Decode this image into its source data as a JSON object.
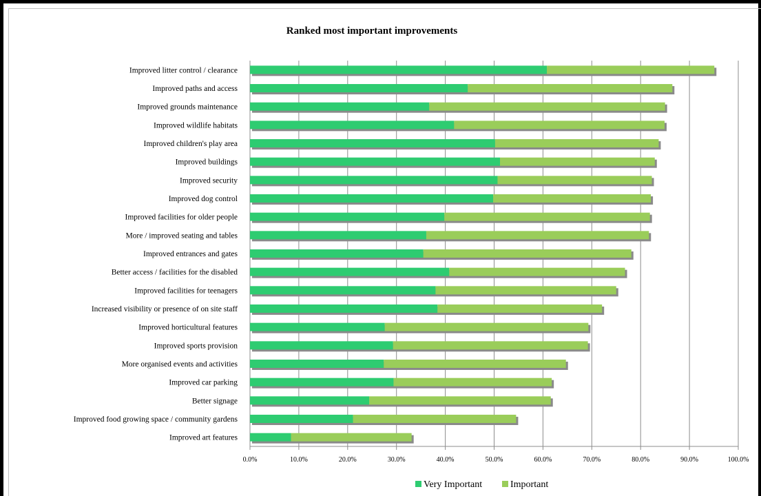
{
  "chart_data": {
    "type": "bar",
    "orientation": "horizontal",
    "stacked": true,
    "title": "Ranked most important improvements",
    "xlabel": "",
    "ylabel": "",
    "xlim": [
      0,
      100
    ],
    "x_ticks": [
      "0.0%",
      "10.0%",
      "20.0%",
      "30.0%",
      "40.0%",
      "50.0%",
      "60.0%",
      "70.0%",
      "80.0%",
      "90.0%",
      "100.0%"
    ],
    "grid": "vertical",
    "legend_position": "bottom",
    "categories": [
      "Improved litter control / clearance",
      "Improved paths and access",
      "Improved grounds maintenance",
      "Improved wildlife habitats",
      "Improved children's play area",
      "Improved buildings",
      "Improved security",
      "Improved dog control",
      "Improved facilities for older people",
      "More / improved seating and tables",
      "Improved entrances and gates",
      "Better access / facilities for the disabled",
      "Improved facilities for teenagers",
      "Increased visibility or presence of on site staff",
      "Improved horticultural features",
      "Improved sports provision",
      "More organised events and activities",
      "Improved car parking",
      "Better signage",
      "Improved food growing space / community gardens",
      "Improved art features"
    ],
    "series": [
      {
        "name": "Very Important",
        "color": "#2ecc71",
        "values": [
          60.8,
          44.6,
          36.7,
          41.8,
          50.2,
          51.2,
          50.7,
          49.8,
          39.8,
          36.1,
          35.5,
          40.8,
          38.0,
          38.4,
          27.6,
          29.3,
          27.4,
          29.4,
          24.4,
          21.1,
          8.4
        ]
      },
      {
        "name": "Important",
        "color": "#9acd5a",
        "values": [
          34.3,
          41.9,
          48.3,
          43.1,
          33.5,
          31.7,
          31.6,
          32.3,
          42.1,
          45.6,
          42.6,
          36.0,
          37.0,
          33.7,
          41.7,
          39.9,
          37.3,
          32.4,
          37.2,
          33.4,
          24.7
        ]
      }
    ]
  }
}
